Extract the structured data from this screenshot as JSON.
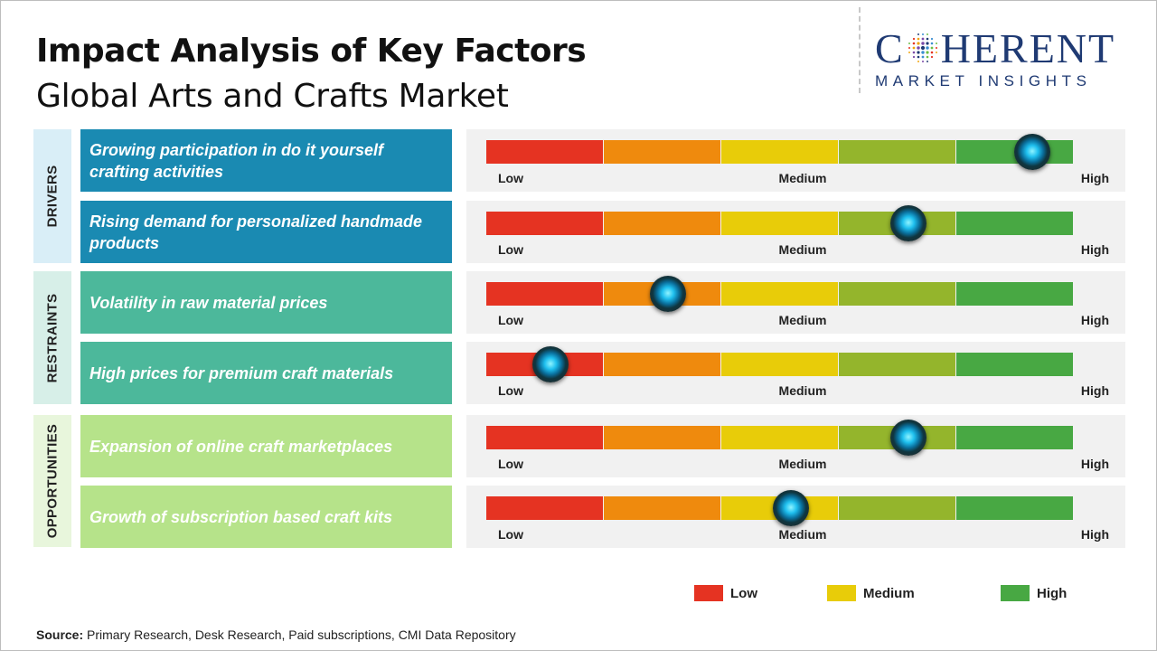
{
  "title": "Impact Analysis of Key Factors",
  "subtitle": "Global Arts and Crafts Market",
  "logo": {
    "main_before": "C",
    "main_after": "HERENT",
    "sub": "MARKET INSIGHTS"
  },
  "source": {
    "label": "Source:",
    "text": " Primary Research, Desk Research, Paid subscriptions, CMI Data Repository"
  },
  "colors": {
    "low": "#e53322",
    "low_mid": "#ef8a0d",
    "medium": "#e8cc09",
    "mid_high": "#94b52c",
    "high": "#48a843",
    "drivers_bg": "#1a8ab2",
    "drivers_cat": "#d9eef7",
    "restraints_bg": "#4cb89b",
    "restraints_cat": "#d7efe8",
    "opportunities_bg": "#b6e38a",
    "opportunities_cat": "#e8f6dc"
  },
  "chart_data": {
    "type": "bar",
    "scale": {
      "min": 0,
      "max": 1,
      "labels": [
        "Low",
        "Medium",
        "High"
      ]
    },
    "categories": [
      {
        "name": "DRIVERS",
        "factors": [
          {
            "label": "Growing participation in do it yourself crafting activities",
            "impact": 0.93
          },
          {
            "label": "Rising demand for personalized handmade products",
            "impact": 0.72
          }
        ]
      },
      {
        "name": "RESTRAINTS",
        "factors": [
          {
            "label": "Volatility in raw material prices",
            "impact": 0.31
          },
          {
            "label": "High prices for premium craft materials",
            "impact": 0.11
          }
        ]
      },
      {
        "name": "OPPORTUNITIES",
        "factors": [
          {
            "label": "Expansion of online craft marketplaces",
            "impact": 0.72
          },
          {
            "label": "Growth of subscription based craft kits",
            "impact": 0.52
          }
        ]
      }
    ],
    "legend": [
      {
        "label": "Low",
        "color": "#e53322"
      },
      {
        "label": "Medium",
        "color": "#e8cc09"
      },
      {
        "label": "High",
        "color": "#48a843"
      }
    ]
  }
}
